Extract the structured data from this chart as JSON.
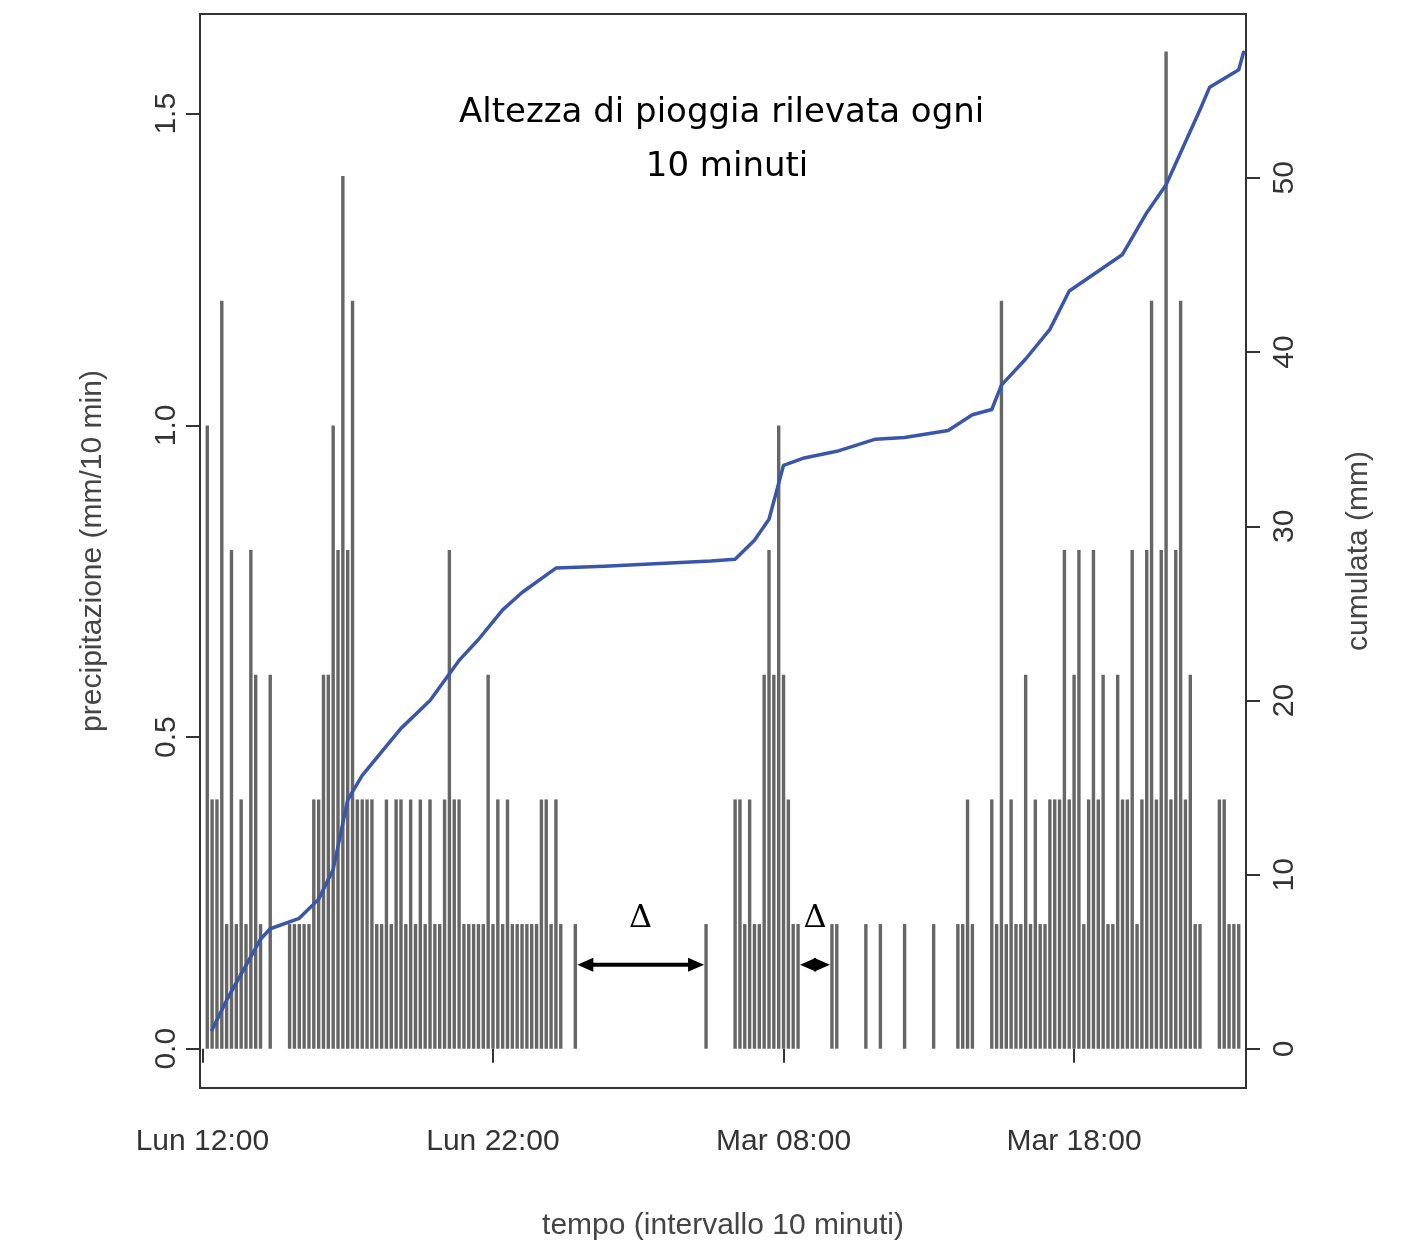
{
  "chart_data": {
    "type": "bar",
    "title": "Altezza di pioggia rilevata ogni 10 minuti",
    "xlabel": "tempo (intervallo 10 minuti)",
    "ylabel": "precipitazione (mm/10 min)",
    "y2label": "cumulata (mm)",
    "categories": [
      "Lun 12:00",
      null,
      null,
      null,
      null,
      null,
      null,
      null,
      null,
      null,
      null,
      null,
      null,
      null,
      null,
      null,
      null,
      null,
      null,
      null,
      null,
      null,
      null,
      null,
      null,
      null,
      null,
      null,
      null,
      null,
      null,
      null,
      null,
      null,
      null,
      null,
      null,
      null,
      null,
      null,
      null,
      null,
      null,
      null,
      null,
      null,
      null,
      null,
      null,
      null,
      null,
      null,
      null,
      null,
      null,
      null,
      null,
      null,
      null,
      null,
      "Lun 22:00",
      null,
      null,
      null,
      null,
      null,
      null,
      null,
      null,
      null,
      null,
      null,
      null,
      null,
      null,
      null,
      null,
      null,
      null,
      null,
      null,
      null,
      null,
      null,
      null,
      null,
      null,
      null,
      null,
      null,
      null,
      null,
      null,
      null,
      null,
      null,
      null,
      null,
      null,
      null,
      null,
      null,
      null,
      null,
      null,
      null,
      null,
      null,
      null,
      null,
      null,
      null,
      null,
      null,
      null,
      null,
      null,
      null,
      null,
      null,
      "Mar 08:00",
      null,
      null,
      null,
      null,
      null,
      null,
      null,
      null,
      null,
      null,
      null,
      null,
      null,
      null,
      null,
      null,
      null,
      null,
      null,
      null,
      null,
      null,
      null,
      null,
      null,
      null,
      null,
      null,
      null,
      null,
      null,
      null,
      null,
      null,
      null,
      null,
      null,
      null,
      null,
      null,
      null,
      null,
      null,
      null,
      null,
      null,
      null,
      null,
      null,
      null,
      null,
      null,
      null,
      null,
      null,
      null,
      null,
      null,
      null,
      "Mar 18:00",
      null,
      null,
      null,
      null,
      null,
      null,
      null,
      null,
      null,
      null,
      null,
      null,
      null,
      null,
      null,
      null,
      null,
      null,
      null,
      null,
      null,
      null,
      null,
      null,
      null,
      null,
      null,
      null,
      null,
      null,
      null,
      null,
      null,
      null,
      null
    ],
    "ylim": [
      -0.063,
      1.66
    ],
    "yticks": [
      {
        "value": 0,
        "label": "0.0"
      },
      {
        "value": 0.5,
        "label": "0.5"
      },
      {
        "value": 1,
        "label": "1.0"
      },
      {
        "value": 1.5,
        "label": "1.5"
      }
    ],
    "y2lim": [
      -2.24,
      59.4
    ],
    "y2ticks": [
      0,
      10,
      20,
      30,
      40,
      50
    ],
    "marker": "none",
    "series": [
      {
        "color": "#666666",
        "values": [
          null,
          1.0,
          0.4,
          0.4,
          1.2,
          0.2,
          0.8,
          0.2,
          0.4,
          0.2,
          0.8,
          0.6,
          0.2,
          0,
          0.6,
          0,
          0,
          0,
          0.2,
          0.2,
          0.2,
          0.2,
          0.2,
          0.4,
          0.4,
          0.6,
          0.6,
          1.0,
          0.8,
          1.4,
          0.8,
          1.2,
          0.4,
          0.4,
          0.4,
          0.4,
          0.2,
          0.2,
          0.4,
          0.2,
          0.4,
          0.4,
          0.2,
          0.4,
          0.2,
          0.4,
          0.2,
          0.4,
          0.2,
          0.2,
          0.4,
          0.8,
          0.4,
          0.4,
          0.2,
          0.2,
          0.2,
          0.2,
          0.2,
          0.6,
          0.2,
          0.4,
          0.2,
          0.4,
          0.2,
          0.2,
          0.2,
          0.2,
          0.2,
          0.2,
          0.4,
          0.4,
          0.2,
          0.4,
          0.2,
          0,
          0,
          0.2,
          0,
          0,
          0,
          0,
          0,
          0,
          0,
          0,
          0,
          0,
          0,
          0,
          0,
          0,
          0,
          0,
          0,
          0,
          0,
          0,
          0,
          0,
          0,
          0,
          0,
          0,
          0.2,
          0,
          0,
          0,
          0,
          0,
          0.4,
          0.4,
          0.2,
          0.4,
          0.2,
          0.2,
          0.6,
          0.8,
          0.6,
          1.0,
          0.6,
          0.4,
          0.2,
          0.2,
          0,
          0,
          0,
          0,
          0,
          0,
          0.2,
          0.2,
          0,
          0,
          0,
          0,
          0,
          0.2,
          0,
          0,
          0.2,
          0,
          0,
          0,
          0,
          0.2,
          0,
          0,
          0,
          0,
          0,
          0.2,
          0,
          0,
          0,
          0,
          0.2,
          0.2,
          0.4,
          0.2,
          0,
          0,
          0,
          0.4,
          0.2,
          1.2,
          0.2,
          0.4,
          0.2,
          0.2,
          0.6,
          0.2,
          0.4,
          0.2,
          0.2,
          0.4,
          0.4,
          0.4,
          0.8,
          0.4,
          0.6,
          0.8,
          0.2,
          0.4,
          0.8,
          0.4,
          0.6,
          0.2,
          0.2,
          0.6,
          0.4,
          0.4,
          0.8,
          0.2,
          0.4,
          0.8,
          1.2,
          0.4,
          0.8,
          1.6,
          0.4,
          0.8,
          1.2,
          0.4,
          0.6,
          0.2,
          0.2,
          0,
          0,
          0,
          0.4,
          0.4,
          0.2,
          0.2,
          0.2,
          null
        ]
      },
      {
        "type": "line",
        "axis": "y2",
        "color": "#3a56a8",
        "values": [
          null,
          null,
          1.1,
          null,
          null,
          2.8,
          null,
          null,
          null,
          4.8,
          null,
          null,
          6.3,
          null,
          6.9,
          null,
          null,
          null,
          null,
          null,
          7.5,
          null,
          null,
          null,
          8.6,
          null,
          null,
          10.3,
          null,
          null,
          14.3,
          null,
          null,
          15.7,
          null,
          null,
          null,
          null,
          null,
          null,
          null,
          18.4,
          null,
          null,
          null,
          null,
          null,
          20.0,
          null,
          null,
          null,
          null,
          null,
          22.3,
          null,
          null,
          null,
          23.5,
          null,
          null,
          null,
          null,
          25.2,
          null,
          null,
          null,
          26.2,
          null,
          null,
          null,
          null,
          null,
          null,
          27.6,
          null,
          null,
          null,
          null,
          null,
          null,
          null,
          null,
          null,
          27.7,
          null,
          null,
          null,
          null,
          null,
          null,
          null,
          null,
          null,
          null,
          null,
          null,
          null,
          null,
          null,
          null,
          null,
          null,
          null,
          null,
          null,
          28.0,
          null,
          null,
          null,
          null,
          28.1,
          null,
          null,
          null,
          29.2,
          null,
          null,
          30.4,
          null,
          null,
          33.5,
          null,
          null,
          null,
          33.9,
          null,
          null,
          null,
          null,
          null,
          null,
          34.3,
          null,
          null,
          null,
          null,
          null,
          null,
          null,
          35.0,
          null,
          null,
          null,
          null,
          null,
          35.1,
          null,
          null,
          null,
          null,
          null,
          null,
          null,
          null,
          35.5,
          null,
          null,
          null,
          null,
          36.4,
          null,
          null,
          null,
          36.7,
          null,
          38.1,
          null,
          null,
          null,
          null,
          39.6,
          null,
          null,
          null,
          null,
          41.3,
          null,
          null,
          null,
          43.5,
          null,
          null,
          null,
          null,
          null,
          null,
          null,
          null,
          null,
          null,
          45.6,
          null,
          null,
          null,
          null,
          48.0,
          null,
          null,
          null,
          49.6,
          null,
          null,
          null,
          null,
          null,
          null,
          53.9,
          null,
          55.2,
          null,
          null,
          55.7,
          null,
          null,
          56.2,
          57.2
        ]
      }
    ],
    "annotations": [
      "Δ",
      "Δ"
    ]
  }
}
